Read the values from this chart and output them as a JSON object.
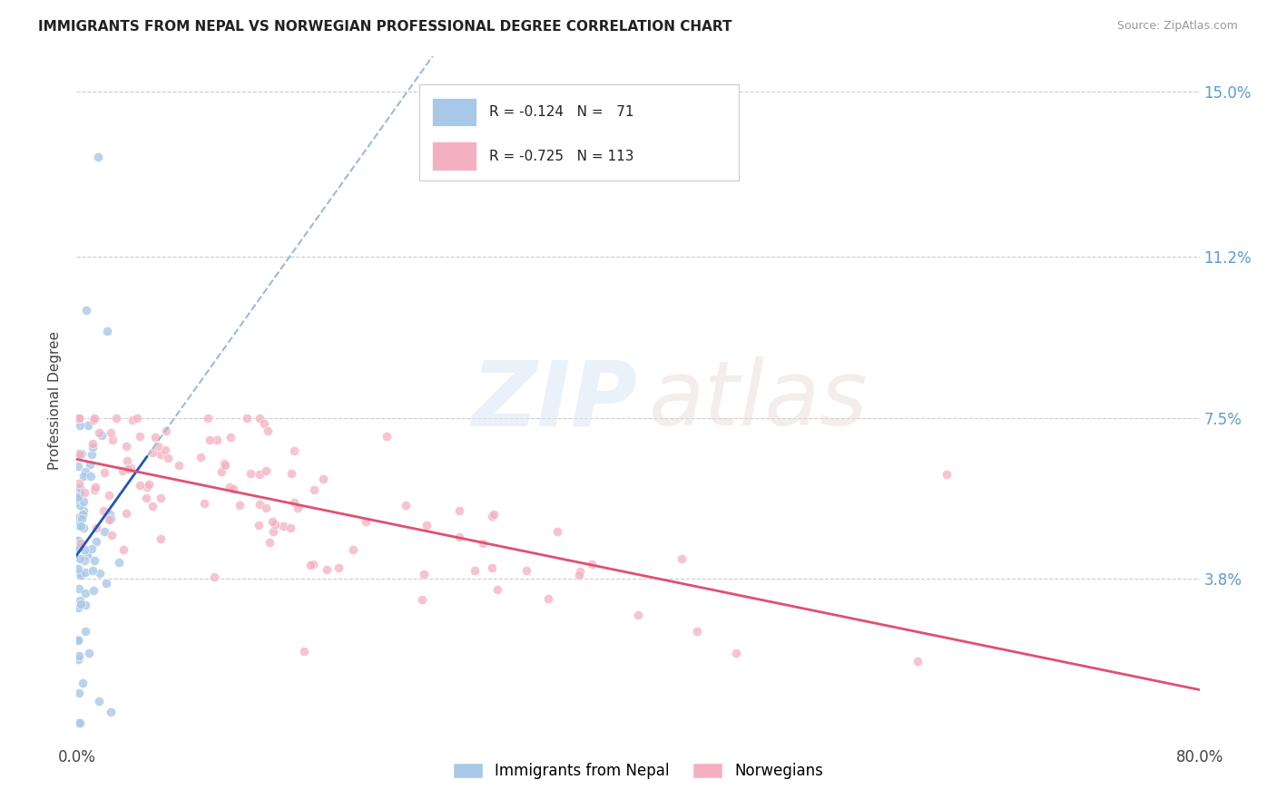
{
  "title": "IMMIGRANTS FROM NEPAL VS NORWEGIAN PROFESSIONAL DEGREE CORRELATION CHART",
  "source": "Source: ZipAtlas.com",
  "ylabel": "Professional Degree",
  "xmin": 0.0,
  "xmax": 0.8,
  "ymin": 0.0,
  "ymax": 0.158,
  "yticks": [
    0.038,
    0.075,
    0.112,
    0.15
  ],
  "ytick_labels": [
    "3.8%",
    "7.5%",
    "11.2%",
    "15.0%"
  ],
  "color_nepal": "#a8c8e8",
  "color_norway": "#f4b0c0",
  "trendline_nepal": "#2255bb",
  "trendline_norway": "#e05070",
  "trendline_dashed_color": "#99bbdd",
  "background_color": "#ffffff",
  "series1_name": "Immigrants from Nepal",
  "series2_name": "Norwegians",
  "legend_text1": "R = -0.124   N =   71",
  "legend_text2": "R = -0.725   N = 113"
}
